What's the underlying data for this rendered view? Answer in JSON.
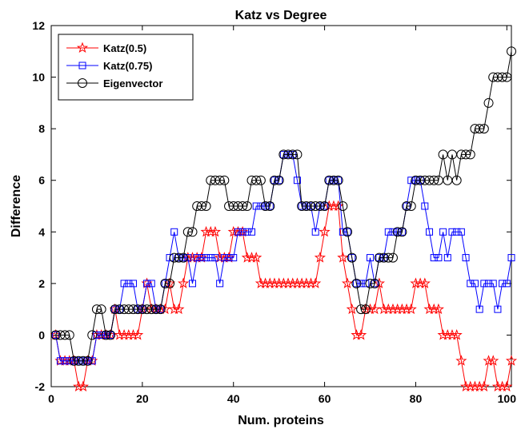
{
  "chart_data": {
    "type": "line",
    "title": "Katz vs Degree",
    "xlabel": "Num. proteins",
    "ylabel": "Difference",
    "xlim": [
      0,
      101
    ],
    "ylim": [
      -2,
      12
    ],
    "xticks": [
      0,
      20,
      40,
      60,
      80,
      100
    ],
    "yticks": [
      -2,
      0,
      2,
      4,
      6,
      8,
      10,
      12
    ],
    "grid": false,
    "legend_position": "top-left",
    "x": [
      1,
      2,
      3,
      4,
      5,
      6,
      7,
      8,
      9,
      10,
      11,
      12,
      13,
      14,
      15,
      16,
      17,
      18,
      19,
      20,
      21,
      22,
      23,
      24,
      25,
      26,
      27,
      28,
      29,
      30,
      31,
      32,
      33,
      34,
      35,
      36,
      37,
      38,
      39,
      40,
      41,
      42,
      43,
      44,
      45,
      46,
      47,
      48,
      49,
      50,
      51,
      52,
      53,
      54,
      55,
      56,
      57,
      58,
      59,
      60,
      61,
      62,
      63,
      64,
      65,
      66,
      67,
      68,
      69,
      70,
      71,
      72,
      73,
      74,
      75,
      76,
      77,
      78,
      79,
      80,
      81,
      82,
      83,
      84,
      85,
      86,
      87,
      88,
      89,
      90,
      91,
      92,
      93,
      94,
      95,
      96,
      97,
      98,
      99,
      100,
      101
    ],
    "series": [
      {
        "name": "Katz(0.5)",
        "color": "#ff0000",
        "marker": "star",
        "values": [
          0,
          -1,
          -1,
          -1,
          -1,
          -2,
          -2,
          -1,
          -1,
          0,
          0,
          0,
          0,
          1,
          0,
          0,
          0,
          0,
          0,
          1,
          2,
          1,
          1,
          1,
          1,
          2,
          1,
          1,
          2,
          3,
          3,
          3,
          3,
          4,
          4,
          4,
          3,
          3,
          3,
          4,
          4,
          4,
          3,
          3,
          3,
          2,
          2,
          2,
          2,
          2,
          2,
          2,
          2,
          2,
          2,
          2,
          2,
          2,
          3,
          4,
          5,
          5,
          5,
          3,
          2,
          1,
          0,
          0,
          1,
          1,
          1,
          2,
          1,
          1,
          1,
          1,
          1,
          1,
          1,
          2,
          2,
          2,
          1,
          1,
          1,
          0,
          0,
          0,
          0,
          -1,
          -2,
          -2,
          -2,
          -2,
          -2,
          -1,
          -1,
          -2,
          -2,
          -2,
          -1
        ]
      },
      {
        "name": "Katz(0.75)",
        "color": "#0000ff",
        "marker": "square",
        "values": [
          0,
          -1,
          -1,
          -1,
          -1,
          -1,
          -1,
          -1,
          -1,
          0,
          0,
          0,
          0,
          1,
          1,
          2,
          2,
          2,
          1,
          1,
          2,
          2,
          1,
          1,
          2,
          3,
          4,
          3,
          3,
          3,
          2,
          3,
          3,
          3,
          3,
          3,
          2,
          3,
          3,
          3,
          4,
          4,
          4,
          4,
          5,
          5,
          5,
          5,
          6,
          6,
          7,
          7,
          7,
          6,
          5,
          5,
          5,
          4,
          5,
          5,
          6,
          6,
          6,
          4,
          4,
          3,
          2,
          2,
          2,
          3,
          2,
          3,
          3,
          4,
          4,
          4,
          4,
          5,
          6,
          6,
          6,
          5,
          4,
          3,
          3,
          4,
          3,
          4,
          4,
          4,
          3,
          2,
          2,
          1,
          2,
          2,
          2,
          1,
          2,
          2,
          3
        ]
      },
      {
        "name": "Eigenvector",
        "color": "#000000",
        "marker": "circle",
        "values": [
          0,
          0,
          0,
          0,
          -1,
          -1,
          -1,
          -1,
          0,
          1,
          1,
          0,
          0,
          1,
          1,
          1,
          1,
          1,
          1,
          1,
          1,
          1,
          1,
          1,
          2,
          2,
          3,
          3,
          3,
          4,
          4,
          5,
          5,
          5,
          6,
          6,
          6,
          6,
          5,
          5,
          5,
          5,
          5,
          6,
          6,
          6,
          5,
          5,
          6,
          6,
          7,
          7,
          7,
          7,
          5,
          5,
          5,
          5,
          5,
          5,
          6,
          6,
          6,
          5,
          4,
          3,
          2,
          1,
          1,
          2,
          2,
          3,
          3,
          3,
          3,
          4,
          4,
          5,
          5,
          6,
          6,
          6,
          6,
          6,
          6,
          7,
          6,
          7,
          6,
          7,
          7,
          7,
          8,
          8,
          8,
          9,
          10,
          10,
          10,
          10,
          11
        ]
      }
    ]
  }
}
